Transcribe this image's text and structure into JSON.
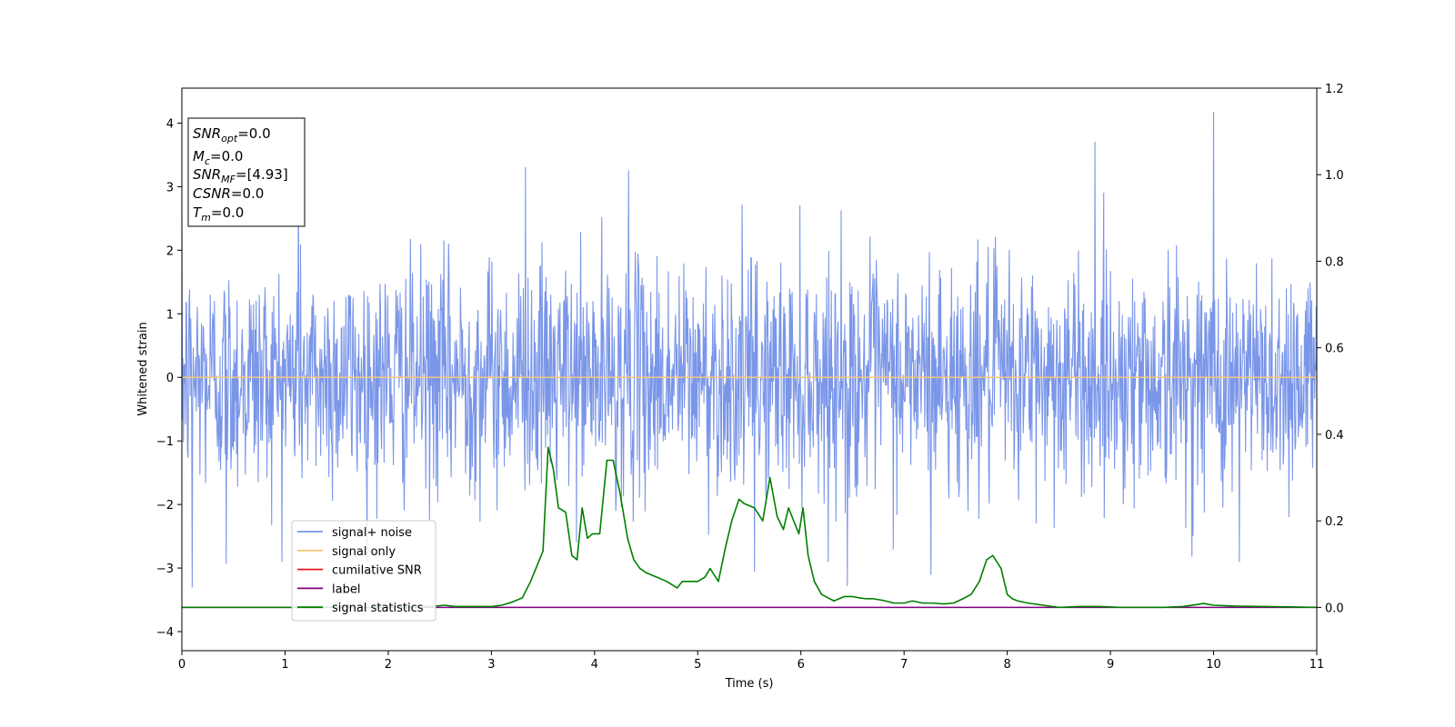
{
  "chart_data": {
    "type": "line",
    "xlabel": "Time (s)",
    "ylabel": "Whitened strain",
    "xlim": [
      0,
      11
    ],
    "ylim_left": [
      -4.3,
      4.55
    ],
    "ylim_right": [
      -0.1,
      1.2
    ],
    "xticks": [
      0,
      1,
      2,
      3,
      4,
      5,
      6,
      7,
      8,
      9,
      10,
      11
    ],
    "yticks_left": [
      -4,
      -3,
      -2,
      -1,
      0,
      1,
      2,
      3,
      4
    ],
    "yticks_right": [
      0.0,
      0.2,
      0.4,
      0.6,
      0.8,
      1.0,
      1.2
    ],
    "grid": false,
    "legend_position": "lower-left",
    "info_box": {
      "snr_opt": {
        "base": "SNR",
        "sub": "opt",
        "value": "=0.0"
      },
      "mc": {
        "base": "M",
        "sub": "c",
        "value": "=0.0"
      },
      "snr_mf": {
        "base": "SNR",
        "sub": "MF",
        "value": "=[4.93]"
      },
      "csnr": {
        "base": "CSNR",
        "sub": "",
        "value": "=0.0"
      },
      "tm": {
        "base": "T",
        "sub": "m",
        "value": "=0.0"
      }
    },
    "series": [
      {
        "name": "signal+ noise",
        "color": "#7a96e8",
        "axis": "left",
        "kind": "noise",
        "std": 0.9,
        "samples": 2200,
        "extremes": [
          [
            0.1,
            -3.3
          ],
          [
            0.43,
            -2.93
          ],
          [
            1.13,
            3.3
          ],
          [
            3.33,
            3.3
          ],
          [
            4.33,
            3.25
          ],
          [
            5.55,
            -3.05
          ],
          [
            6.45,
            -3.28
          ],
          [
            7.26,
            -3.1
          ],
          [
            8.85,
            3.7
          ],
          [
            10,
            4.17
          ],
          [
            10.25,
            -2.9
          ]
        ]
      },
      {
        "name": "signal only",
        "color": "#f5c77e",
        "axis": "left",
        "kind": "line",
        "x": [
          0,
          11
        ],
        "y": [
          0,
          0
        ]
      },
      {
        "name": "cumilative SNR",
        "color": "#e8191a",
        "axis": "left",
        "kind": "line",
        "x": [],
        "y": []
      },
      {
        "name": "label",
        "color": "#7f007f",
        "axis": "right",
        "kind": "line",
        "x": [
          0,
          11
        ],
        "y": [
          0,
          0
        ]
      },
      {
        "name": "signal statistics",
        "color": "#007f00",
        "axis": "right",
        "kind": "line",
        "x": [
          0,
          0.2,
          0.5,
          1.0,
          1.5,
          2.0,
          2.3,
          2.55,
          2.65,
          2.8,
          3.0,
          3.1,
          3.2,
          3.3,
          3.38,
          3.5,
          3.55,
          3.6,
          3.65,
          3.72,
          3.78,
          3.83,
          3.88,
          3.93,
          3.98,
          4.05,
          4.12,
          4.18,
          4.25,
          4.32,
          4.38,
          4.44,
          4.5,
          4.6,
          4.7,
          4.8,
          4.85,
          4.9,
          5.0,
          5.07,
          5.12,
          5.2,
          5.27,
          5.33,
          5.4,
          5.45,
          5.55,
          5.63,
          5.7,
          5.77,
          5.83,
          5.88,
          5.93,
          5.98,
          6.02,
          6.07,
          6.13,
          6.2,
          6.32,
          6.42,
          6.5,
          6.57,
          6.63,
          6.7,
          6.8,
          6.9,
          7.0,
          7.08,
          7.18,
          7.28,
          7.38,
          7.48,
          7.57,
          7.65,
          7.73,
          7.8,
          7.86,
          7.94,
          8.0,
          8.05,
          8.1,
          8.2,
          8.35,
          8.5,
          8.7,
          8.9,
          9.1,
          9.3,
          9.5,
          9.7,
          9.82,
          9.9,
          10.0,
          10.2,
          10.5,
          10.8,
          11.0
        ],
        "y": [
          0.0,
          0.0,
          0.0,
          0.0,
          0.0,
          0.0,
          0.0,
          0.005,
          0.002,
          0.002,
          0.002,
          0.005,
          0.012,
          0.022,
          0.06,
          0.13,
          0.37,
          0.32,
          0.23,
          0.22,
          0.12,
          0.11,
          0.23,
          0.16,
          0.17,
          0.17,
          0.34,
          0.34,
          0.26,
          0.16,
          0.11,
          0.09,
          0.08,
          0.07,
          0.06,
          0.045,
          0.06,
          0.06,
          0.06,
          0.07,
          0.09,
          0.06,
          0.14,
          0.2,
          0.25,
          0.24,
          0.23,
          0.2,
          0.3,
          0.21,
          0.18,
          0.23,
          0.2,
          0.17,
          0.23,
          0.12,
          0.06,
          0.03,
          0.015,
          0.025,
          0.025,
          0.022,
          0.02,
          0.02,
          0.016,
          0.01,
          0.01,
          0.015,
          0.01,
          0.01,
          0.008,
          0.01,
          0.02,
          0.03,
          0.06,
          0.11,
          0.12,
          0.09,
          0.03,
          0.02,
          0.015,
          0.01,
          0.005,
          0.0,
          0.002,
          0.002,
          0.0,
          0.0,
          0.0,
          0.002,
          0.006,
          0.009,
          0.005,
          0.003,
          0.002,
          0.001,
          0.0
        ]
      }
    ]
  }
}
